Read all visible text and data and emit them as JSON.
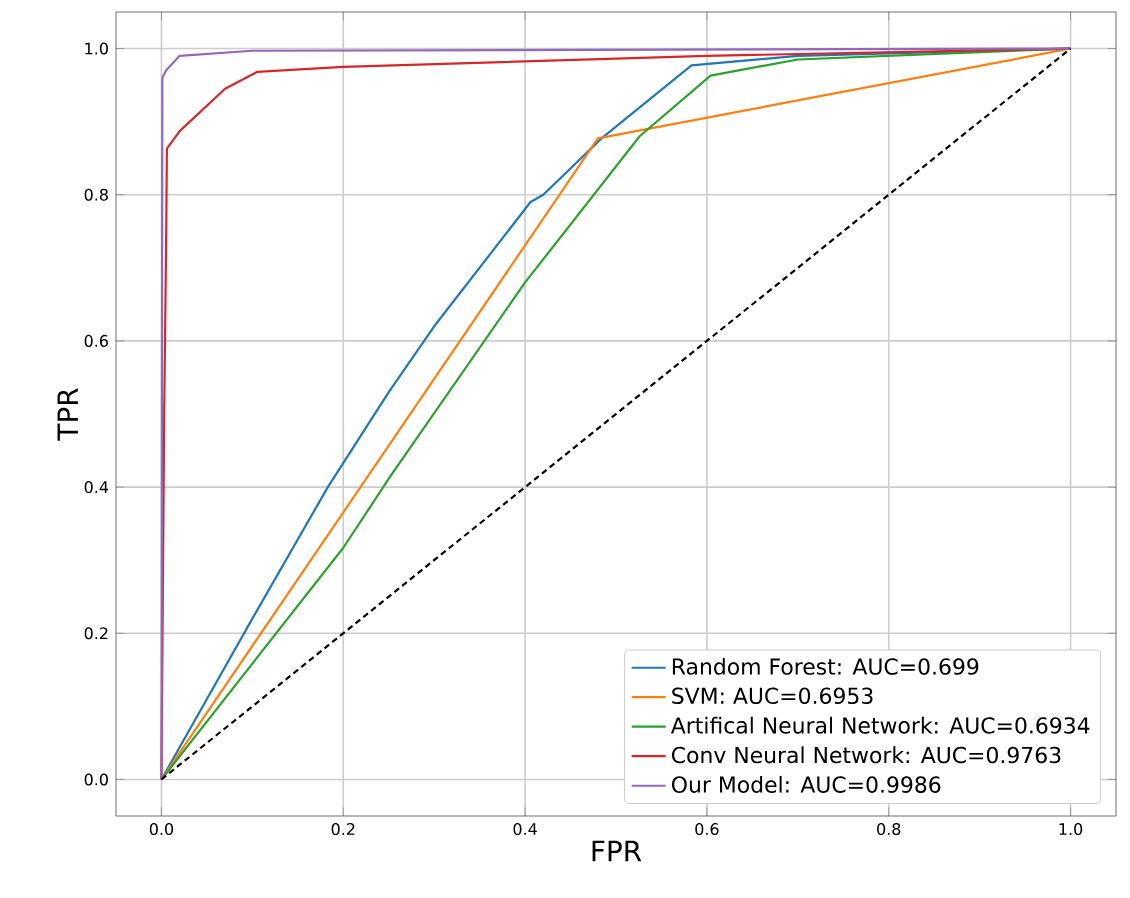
{
  "chart_data": {
    "type": "line",
    "xlabel": "FPR",
    "ylabel": "TPR",
    "xlim": [
      -0.05,
      1.05
    ],
    "ylim": [
      -0.05,
      1.05
    ],
    "xticks": [
      {
        "value": 0,
        "label": "0.0"
      },
      {
        "value": 0.2,
        "label": "0.2"
      },
      {
        "value": 0.4,
        "label": "0.4"
      },
      {
        "value": 0.6,
        "label": "0.6"
      },
      {
        "value": 0.8,
        "label": "0.8"
      },
      {
        "value": 1,
        "label": "1.0"
      }
    ],
    "yticks": [
      {
        "value": 0,
        "label": "0.0"
      },
      {
        "value": 0.2,
        "label": "0.2"
      },
      {
        "value": 0.4,
        "label": "0.4"
      },
      {
        "value": 0.6,
        "label": "0.6"
      },
      {
        "value": 0.8,
        "label": "0.8"
      },
      {
        "value": 1,
        "label": "1.0"
      }
    ],
    "grid": true,
    "legend": "bottom right",
    "marker": "none",
    "series": [
      {
        "name": "Random Forest: AUC=0.699",
        "color": "#1f77b4",
        "x": [
          0,
          0.05,
          0.1,
          0.183,
          0.25,
          0.3,
          0.406,
          0.42,
          0.484,
          0.583,
          0.7,
          1
        ],
        "values": [
          0,
          0.11,
          0.22,
          0.4,
          0.53,
          0.62,
          0.79,
          0.8,
          0.877,
          0.977,
          0.99,
          1
        ]
      },
      {
        "name": "SVM: AUC=0.6953",
        "color": "#ff7f0e",
        "x": [
          0,
          0.48,
          1
        ],
        "values": [
          0,
          0.877,
          1
        ]
      },
      {
        "name": "Artifical Neural Network: AUC=0.6934",
        "color": "#2ca02c",
        "x": [
          0,
          0.2,
          0.253,
          0.4,
          0.526,
          0.604,
          0.7,
          1
        ],
        "values": [
          0,
          0.317,
          0.417,
          0.68,
          0.88,
          0.963,
          0.985,
          1
        ]
      },
      {
        "name": "Conv Neural Network: AUC=0.9763",
        "color": "#d62728",
        "x": [
          0,
          0.003,
          0.005,
          0.006,
          0.02,
          0.07,
          0.105,
          0.2,
          0.6,
          1
        ],
        "values": [
          0,
          0.5,
          0.72,
          0.863,
          0.887,
          0.945,
          0.968,
          0.975,
          0.99,
          1
        ]
      },
      {
        "name": "Our Model: AUC=0.9986",
        "color": "#9467bd",
        "x": [
          0,
          0.001,
          0.005,
          0.02,
          0.1,
          1
        ],
        "values": [
          0,
          0.96,
          0.97,
          0.99,
          0.997,
          1
        ]
      },
      {
        "color": "#000000",
        "line_style": "dashed",
        "x": [
          0,
          1
        ],
        "values": [
          0,
          1
        ]
      }
    ]
  }
}
